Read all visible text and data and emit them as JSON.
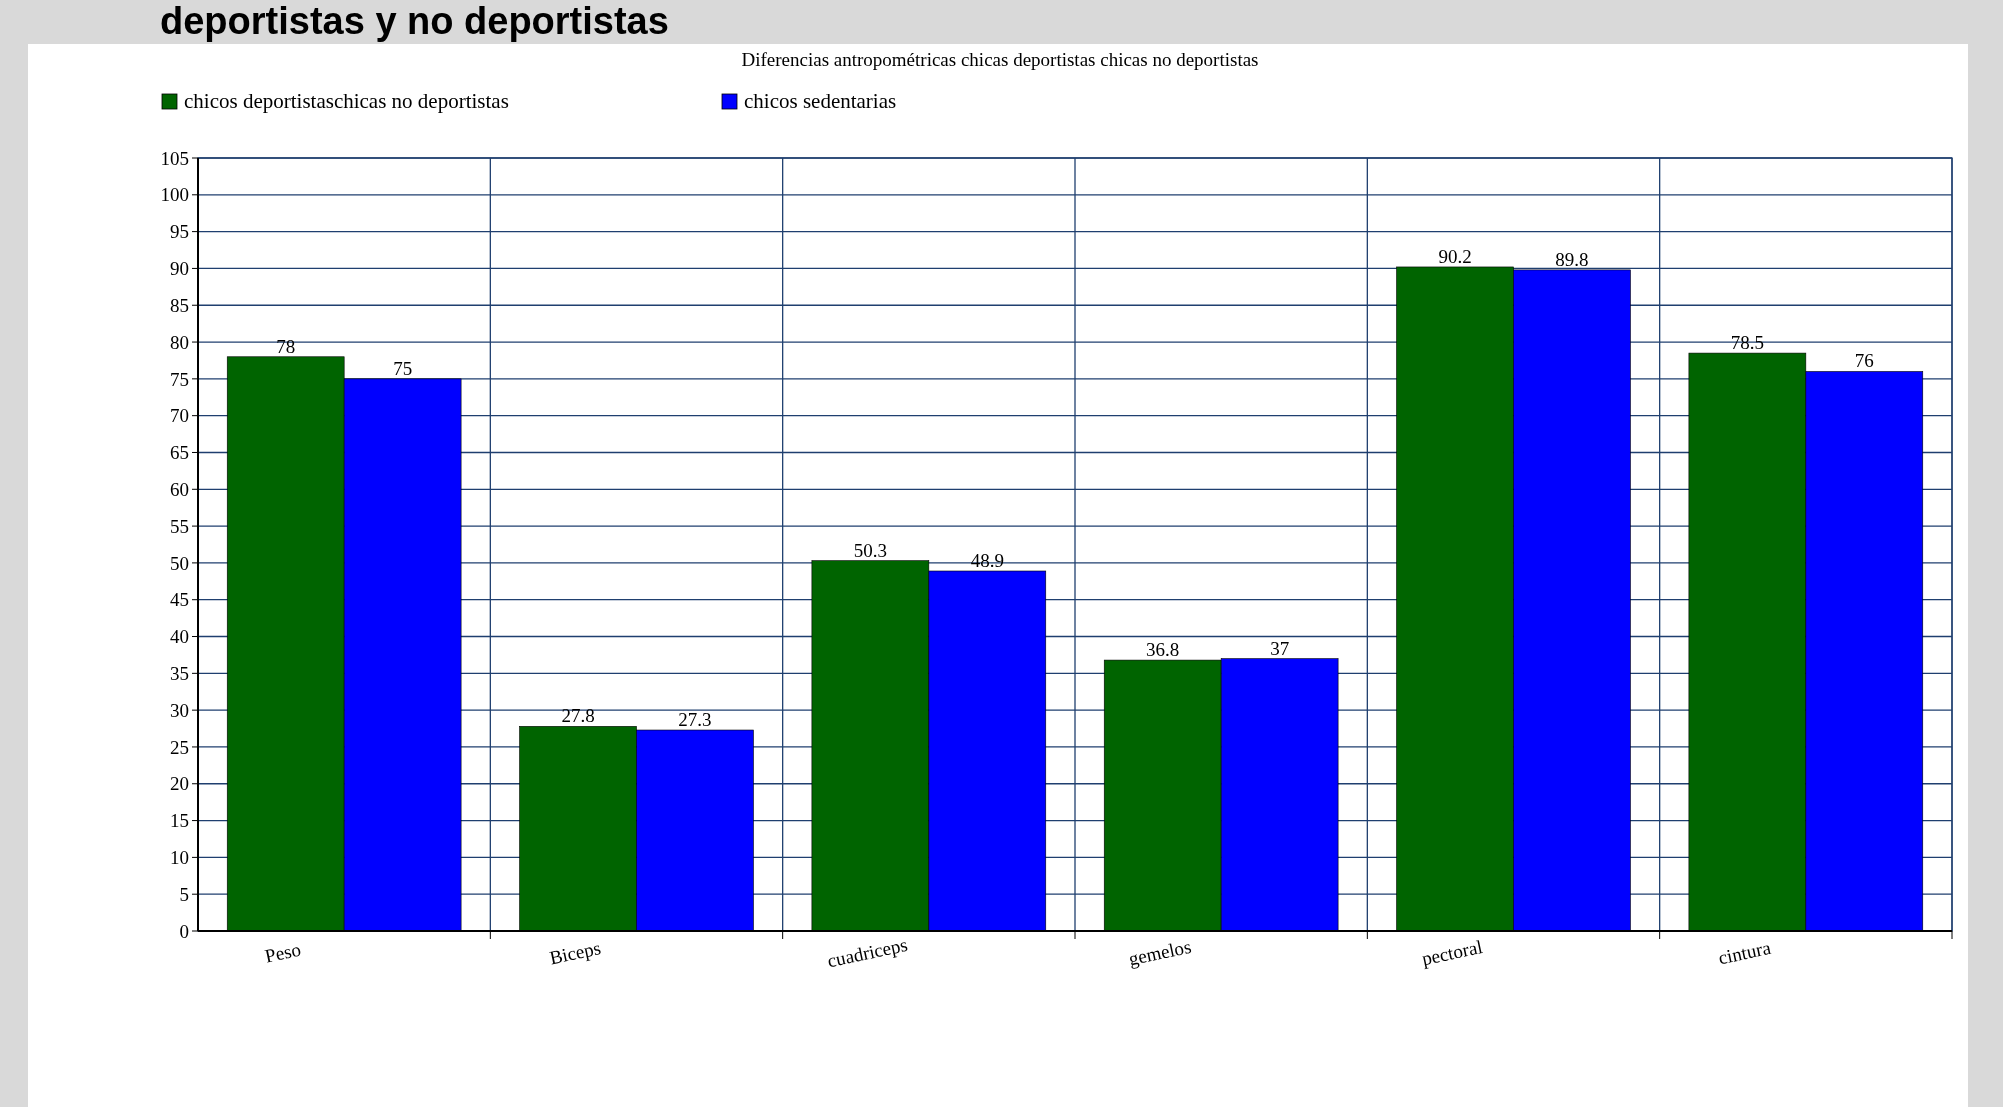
{
  "chart_data": {
    "type": "bar",
    "title": "Diferencias antropométricas chicas deportistas chicas no deportistas",
    "annotations": [
      "deportistas y no deportistas"
    ],
    "categories": [
      "Peso",
      "Biceps",
      "cuadriceps",
      "gemelos",
      "pectoral",
      "cintura"
    ],
    "series": [
      {
        "name": "chicos deportistaschicas no deportistas",
        "color": "#006400",
        "values": [
          78,
          27.8,
          50.3,
          36.8,
          90.2,
          78.5
        ]
      },
      {
        "name": "chicos sedentarias",
        "color": "#0000ff",
        "values": [
          75,
          27.3,
          48.9,
          37,
          89.8,
          76
        ]
      }
    ],
    "ylim": [
      0,
      105
    ],
    "yticks": [
      0,
      5,
      10,
      15,
      20,
      25,
      30,
      35,
      40,
      45,
      50,
      55,
      60,
      65,
      70,
      75,
      80,
      85,
      90,
      95,
      100,
      105
    ],
    "grid": true,
    "legend": "top left",
    "data_labels": true
  }
}
